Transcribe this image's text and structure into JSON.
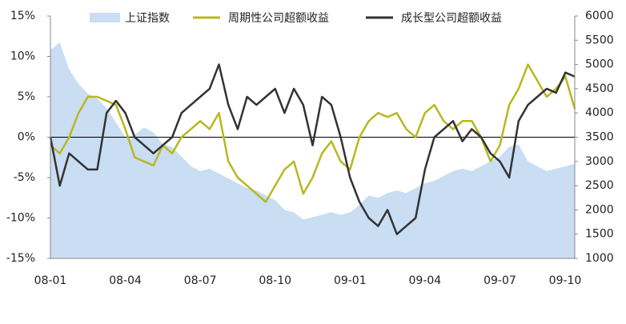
{
  "chart_data": {
    "type": "line",
    "categories": [
      "08-01",
      null,
      null,
      null,
      null,
      null,
      null,
      null,
      "08-04",
      null,
      null,
      null,
      null,
      null,
      null,
      null,
      "08-07",
      null,
      null,
      null,
      null,
      null,
      null,
      null,
      "08-10",
      null,
      null,
      null,
      null,
      null,
      null,
      null,
      "09-01",
      null,
      null,
      null,
      null,
      null,
      null,
      null,
      "09-04",
      null,
      null,
      null,
      null,
      null,
      null,
      null,
      "09-07",
      null,
      null,
      null,
      null,
      null,
      null,
      null,
      "09-10"
    ],
    "series": [
      {
        "name": "上证指数",
        "style": "area",
        "axis": "y2",
        "color": "#c9ddf3",
        "values": [
          5300,
          5450,
          4900,
          4600,
          4400,
          4300,
          4100,
          3800,
          3500,
          3550,
          3700,
          3600,
          3350,
          3300,
          3100,
          2900,
          2800,
          2850,
          2750,
          2650,
          2550,
          2450,
          2400,
          2300,
          2200,
          2000,
          1950,
          1800,
          1850,
          1900,
          1950,
          1900,
          1950,
          2100,
          2300,
          2250,
          2350,
          2400,
          2350,
          2450,
          2550,
          2600,
          2700,
          2800,
          2850,
          2800,
          2900,
          3000,
          3100,
          3300,
          3350,
          3000,
          2900,
          2800,
          2850,
          2900,
          2950
        ]
      },
      {
        "name": "周期性公司超额收益",
        "style": "line",
        "color": "#b8b820",
        "values": [
          -1,
          -2,
          0,
          3,
          5,
          5,
          4.5,
          4,
          1,
          -2.5,
          -3,
          -3.5,
          -1,
          -2,
          0,
          1,
          2,
          1,
          3,
          -3,
          -5,
          -6,
          -7,
          -8,
          -6,
          -4,
          -3,
          -7,
          -5,
          -2,
          -0.5,
          -3,
          -4,
          0,
          2,
          3,
          2.5,
          3,
          1,
          0,
          3,
          4,
          2,
          1,
          2,
          2,
          0,
          -3,
          -1,
          4,
          6,
          9,
          7,
          5,
          6,
          7.5,
          3.5
        ]
      },
      {
        "name": "成长型公司超额收益",
        "style": "line",
        "color": "#333333",
        "values": [
          0,
          -6,
          -2,
          -3,
          -4,
          -4,
          3,
          4.5,
          3,
          0,
          -1,
          -2,
          -1,
          0,
          3,
          4,
          5,
          6,
          9,
          4,
          1,
          5,
          4,
          5,
          6,
          3,
          6,
          4,
          -1,
          5,
          4,
          0,
          -5,
          -8,
          -10,
          -11,
          -9,
          -12,
          -11,
          -10,
          -4,
          0,
          1,
          2,
          -0.5,
          1,
          0,
          -2,
          -3,
          -5,
          2,
          4,
          5,
          6,
          5.5,
          8,
          7.5
        ]
      }
    ],
    "ylim": [
      -15,
      15
    ],
    "yticks": [
      {
        "value": -15,
        "label": "-15%"
      },
      {
        "value": -10,
        "label": "-10%"
      },
      {
        "value": -5,
        "label": "-5%"
      },
      {
        "value": 0,
        "label": "0%"
      },
      {
        "value": 5,
        "label": "5%"
      },
      {
        "value": 10,
        "label": "10%"
      },
      {
        "value": 15,
        "label": "15%"
      }
    ],
    "y2lim": [
      1000,
      6000
    ],
    "y2ticks": [
      1000,
      1500,
      2000,
      2500,
      3000,
      3500,
      4000,
      4500,
      5000,
      5500,
      6000
    ],
    "zero_line": true
  }
}
